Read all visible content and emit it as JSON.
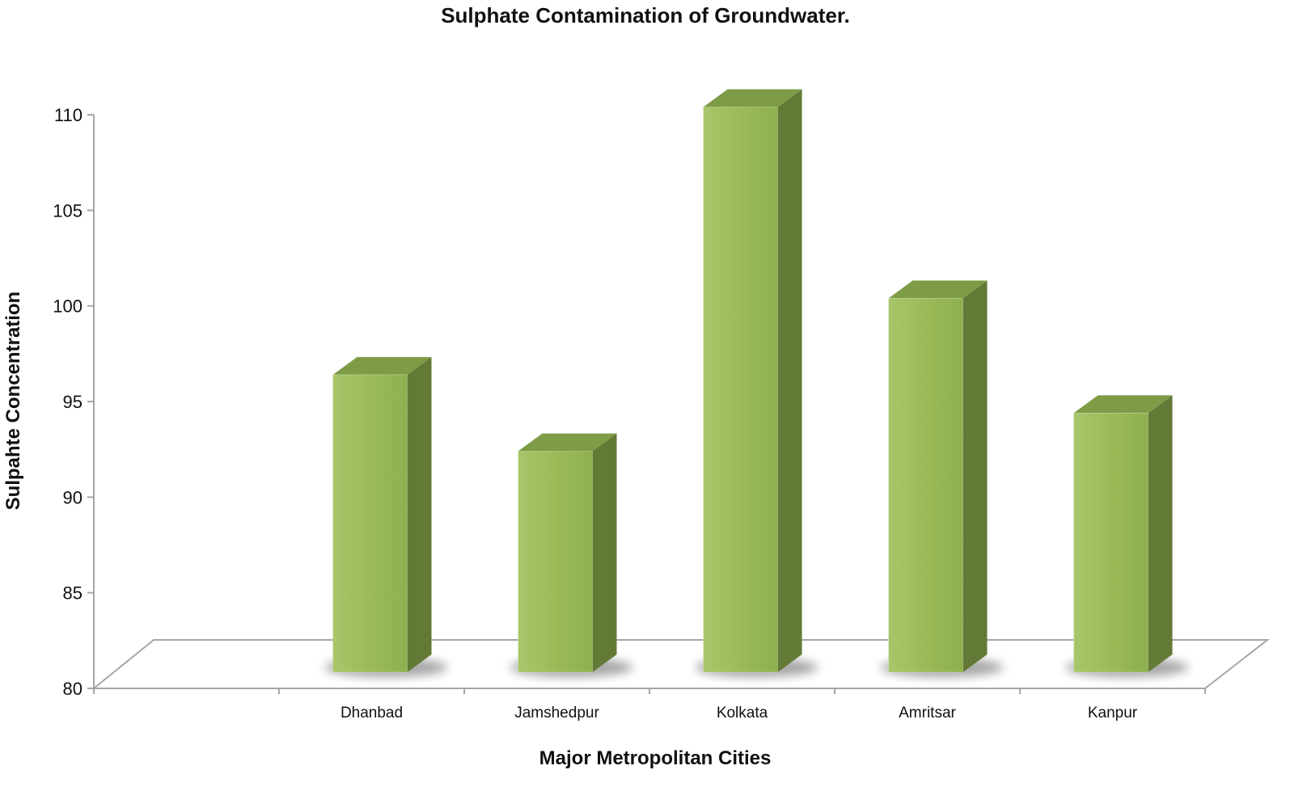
{
  "chart_data": {
    "type": "bar",
    "title": "Sulphate Contamination of Groundwater.",
    "xlabel": "Major Metropolitan Cities",
    "ylabel": "Sulpahte Concentration",
    "categories": [
      "",
      "Dhanbad",
      "Jamshedpur",
      "Kolkata",
      "Amritsar",
      "Kanpur"
    ],
    "values": [
      null,
      96.4,
      92.4,
      110.4,
      100.4,
      94.4
    ],
    "ylim": [
      80,
      110
    ],
    "yticks": [
      "80",
      "85",
      "90",
      "95",
      "100",
      "105",
      "110"
    ],
    "grid": false,
    "legend": "none",
    "style": "3d-column"
  },
  "colors": {
    "bar_front": "#9bbb59",
    "bar_side": "#637a37",
    "bar_top": "#7d9c45",
    "axis": "#a6a6a6",
    "text": "#111111"
  }
}
